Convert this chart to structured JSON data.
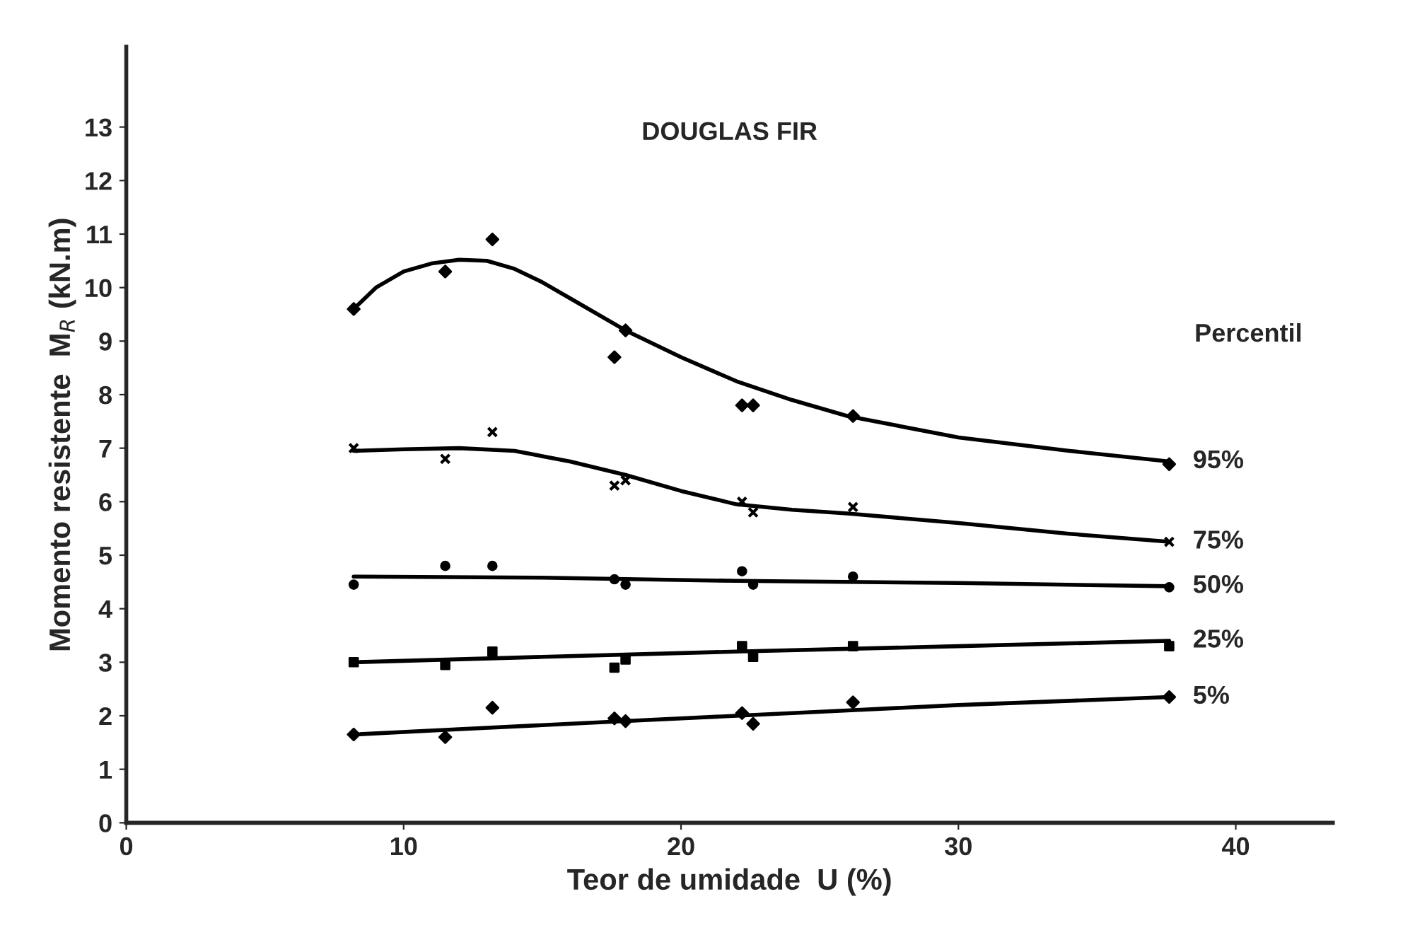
{
  "chart_data": {
    "type": "line",
    "title": "DOUGLAS FIR",
    "xlabel": "Teor de umidade  U (%)",
    "ylabel": "Momento resistente  M$_{R}$ (kN.m)",
    "annotations": [
      "Percentil"
    ],
    "xlim": [
      0,
      43.5
    ],
    "ylim": [
      0,
      14.5
    ],
    "xticks": [
      0,
      10,
      20,
      30,
      40
    ],
    "yticks": [
      0,
      1,
      2,
      3,
      4,
      5,
      6,
      7,
      8,
      9,
      10,
      11,
      12,
      13
    ],
    "grid": false,
    "legend": false,
    "series": [
      {
        "name": "95%",
        "color": "#000000",
        "x": [
          8.2,
          9,
          10,
          11,
          12,
          13,
          14,
          15,
          16,
          18,
          20,
          22,
          24,
          26,
          30,
          34,
          37.6
        ],
        "values": [
          9.6,
          10.0,
          10.3,
          10.45,
          10.52,
          10.5,
          10.35,
          10.1,
          9.8,
          9.2,
          8.7,
          8.25,
          7.9,
          7.6,
          7.2,
          6.95,
          6.75
        ]
      },
      {
        "name": "75%",
        "color": "#000000",
        "x": [
          8.2,
          10,
          12,
          14,
          16,
          18,
          20,
          22,
          24,
          26,
          30,
          34,
          37.6
        ],
        "values": [
          6.95,
          6.98,
          7.0,
          6.95,
          6.75,
          6.5,
          6.2,
          5.95,
          5.85,
          5.78,
          5.6,
          5.4,
          5.25
        ]
      },
      {
        "name": "50%",
        "color": "#000000",
        "x": [
          8.2,
          15,
          22,
          30,
          37.6
        ],
        "values": [
          4.6,
          4.58,
          4.52,
          4.48,
          4.42
        ]
      },
      {
        "name": "25%",
        "color": "#000000",
        "x": [
          8.2,
          15,
          22,
          30,
          37.6
        ],
        "values": [
          3.0,
          3.1,
          3.2,
          3.3,
          3.4
        ]
      },
      {
        "name": "5%",
        "color": "#000000",
        "x": [
          8.2,
          12,
          18,
          22,
          26,
          30,
          37.6
        ],
        "values": [
          1.65,
          1.75,
          1.9,
          2.0,
          2.1,
          2.2,
          2.35
        ]
      },
      {
        "type": "scatter",
        "marker": "diamond",
        "color": "#000000",
        "x": [
          8.2,
          11.5,
          13.2,
          17.6,
          18,
          22.2,
          22.6,
          26.2,
          37.6
        ],
        "values": [
          9.6,
          10.3,
          10.9,
          8.7,
          9.2,
          7.8,
          7.8,
          7.6,
          6.7
        ]
      },
      {
        "type": "scatter",
        "marker": "cross",
        "color": "#000000",
        "x": [
          8.2,
          11.5,
          13.2,
          17.6,
          18,
          22.2,
          22.6,
          26.2,
          37.6
        ],
        "values": [
          7.0,
          6.8,
          7.3,
          6.3,
          6.4,
          6.0,
          5.8,
          5.9,
          5.25
        ]
      },
      {
        "type": "scatter",
        "marker": "circle",
        "color": "#000000",
        "x": [
          8.2,
          11.5,
          13.2,
          17.6,
          18,
          22.2,
          22.6,
          26.2,
          37.6
        ],
        "values": [
          4.45,
          4.8,
          4.8,
          4.55,
          4.45,
          4.7,
          4.45,
          4.6,
          4.4
        ]
      },
      {
        "type": "scatter",
        "marker": "square",
        "color": "#000000",
        "x": [
          8.2,
          11.5,
          13.2,
          17.6,
          18,
          22.2,
          22.6,
          26.2,
          37.6
        ],
        "values": [
          3.0,
          2.95,
          3.2,
          2.9,
          3.05,
          3.3,
          3.1,
          3.3,
          3.3
        ]
      },
      {
        "type": "scatter",
        "marker": "diamond",
        "color": "#000000",
        "x": [
          8.2,
          11.5,
          13.2,
          17.6,
          18,
          22.2,
          22.6,
          26.2,
          37.6
        ],
        "values": [
          1.65,
          1.6,
          2.15,
          1.95,
          1.9,
          2.05,
          1.85,
          2.25,
          2.35
        ]
      }
    ]
  }
}
